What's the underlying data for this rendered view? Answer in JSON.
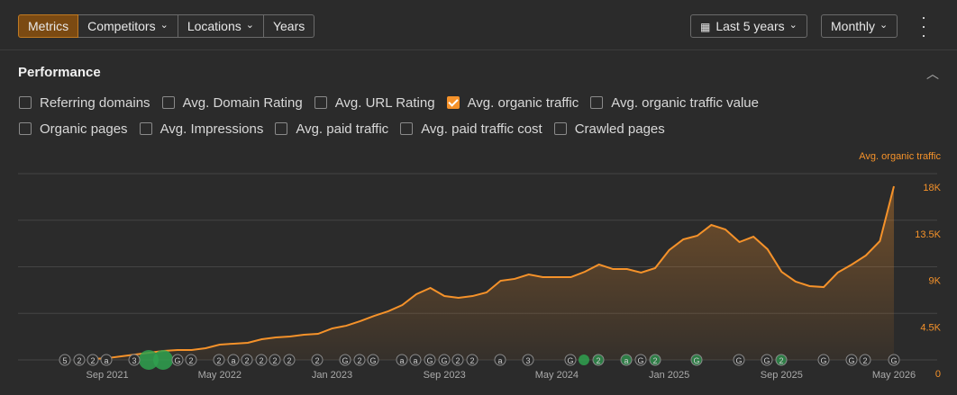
{
  "toolbar": {
    "tabs": [
      "Metrics",
      "Competitors",
      "Locations",
      "Years"
    ],
    "period": "Last 5 years",
    "interval": "Monthly"
  },
  "panel": {
    "title": "Performance",
    "metrics": [
      {
        "label": "Referring domains",
        "checked": false
      },
      {
        "label": "Avg. Domain Rating",
        "checked": false
      },
      {
        "label": "Avg. URL Rating",
        "checked": false
      },
      {
        "label": "Avg. organic traffic",
        "checked": true
      },
      {
        "label": "Avg. organic traffic value",
        "checked": false
      },
      {
        "label": "Organic pages",
        "checked": false
      },
      {
        "label": "Avg. Impressions",
        "checked": false
      },
      {
        "label": "Avg. paid traffic",
        "checked": false
      },
      {
        "label": "Avg. paid traffic cost",
        "checked": false
      },
      {
        "label": "Crawled pages",
        "checked": false
      }
    ]
  },
  "chart_data": {
    "type": "line",
    "categories": [
      null,
      "Sep 2021",
      null,
      null,
      null,
      null,
      null,
      null,
      null,
      "May 2022",
      null,
      null,
      null,
      null,
      null,
      null,
      null,
      "Jan 2023",
      null,
      null,
      null,
      null,
      null,
      null,
      null,
      "Sep 2023",
      null,
      null,
      null,
      null,
      null,
      null,
      null,
      "May 2024",
      null,
      null,
      null,
      null,
      null,
      null,
      null,
      "Jan 2025",
      null,
      null,
      null,
      null,
      null,
      null,
      null,
      "Sep 2025",
      null,
      null,
      null,
      null,
      null,
      null,
      null,
      "May 2026"
    ],
    "series": [
      {
        "name": "Avg. organic traffic",
        "color": "#f5922a",
        "values": [
          90,
          170,
          350,
          520,
          700,
          870,
          960,
          960,
          1130,
          1480,
          1570,
          1650,
          2000,
          2170,
          2260,
          2430,
          2520,
          3040,
          3300,
          3740,
          4260,
          4700,
          5300,
          6350,
          6960,
          6170,
          6000,
          6170,
          6520,
          7650,
          7830,
          8260,
          8000,
          8000,
          8000,
          8520,
          9220,
          8780,
          8780,
          8440,
          8870,
          10610,
          11650,
          12000,
          13040,
          12610,
          11390,
          11910,
          10700,
          8520,
          7570,
          7130,
          7040,
          8440,
          9220,
          10090,
          11480,
          16780
        ]
      }
    ],
    "ylim": [
      0,
      18000
    ],
    "yticks": [
      0,
      {
        "value": 4500,
        "label": "4.5K"
      },
      {
        "value": 9000,
        "label": "9K"
      },
      {
        "value": 13500,
        "label": "13.5K"
      },
      {
        "value": 18000,
        "label": "18K"
      }
    ],
    "grid": true,
    "annotations": [
      "5",
      "2",
      "2",
      "a",
      "3",
      "G",
      "2",
      "2",
      "a",
      "2",
      "2",
      "2",
      "2",
      "2",
      "G",
      "2",
      "G",
      "a",
      "a",
      "G",
      "G",
      "2",
      "2",
      "a",
      "3",
      "G",
      "2",
      "a",
      "G",
      "2",
      "G",
      "G",
      "G",
      "2",
      "G",
      "G",
      "2",
      "G"
    ]
  }
}
